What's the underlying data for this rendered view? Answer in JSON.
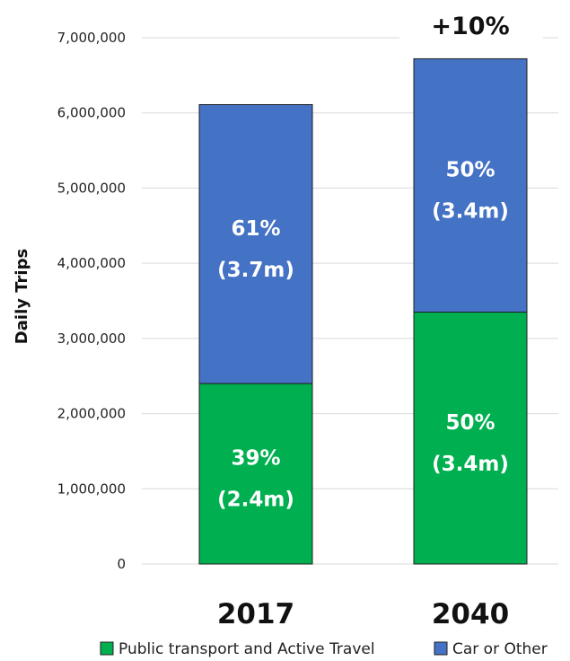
{
  "chart_data": {
    "type": "bar",
    "stacked": true,
    "categories": [
      "2017",
      "2040"
    ],
    "series": [
      {
        "name": "Public transport and Active Travel",
        "color": "#00b050",
        "values": [
          2400000,
          3350000
        ],
        "labels": [
          [
            "39%",
            "(2.4m)"
          ],
          [
            "50%",
            "(3.4m)"
          ]
        ]
      },
      {
        "name": "Car or Other",
        "color": "#4472c4",
        "values": [
          3710000,
          3370000
        ],
        "labels": [
          [
            "61%",
            "(3.7m)"
          ],
          [
            "50%",
            "(3.4m)"
          ]
        ]
      }
    ],
    "ylabel": "Daily Trips",
    "ylim": [
      0,
      7000000
    ],
    "yticks": [
      0,
      1000000,
      2000000,
      3000000,
      4000000,
      5000000,
      6000000,
      7000000
    ],
    "ytick_labels": [
      "0",
      "1,000,000",
      "2,000,000",
      "3,000,000",
      "4,000,000",
      "5,000,000",
      "6,000,000",
      "7,000,000"
    ],
    "annotation": "+10%",
    "legend_position": "bottom",
    "grid": true
  }
}
